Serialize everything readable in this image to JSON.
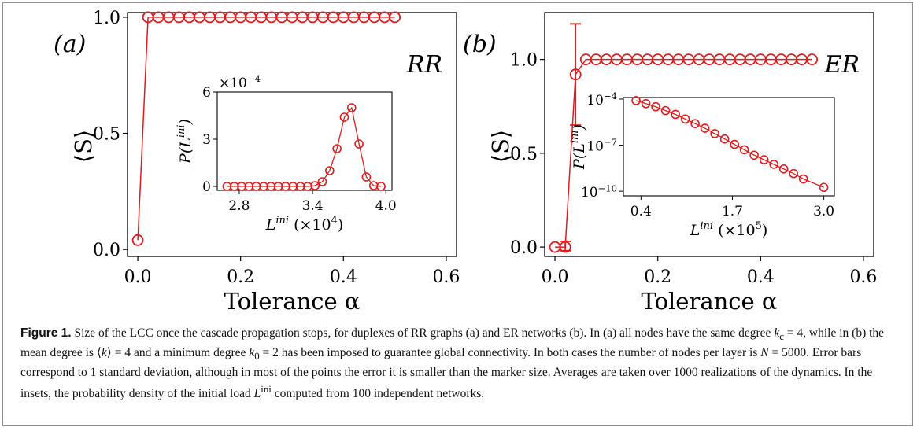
{
  "chart_data": [
    {
      "type": "line",
      "panel_label": "(a)",
      "network_label": "RR",
      "xlabel": "Tolerance α",
      "ylabel": "⟨S⟩",
      "xlim": [
        -0.02,
        0.62
      ],
      "ylim": [
        -0.03,
        1.02
      ],
      "xticks": [
        "0.0",
        "0.2",
        "0.4",
        "0.6"
      ],
      "xtick_values": [
        0.0,
        0.2,
        0.4,
        0.6
      ],
      "yticks": [
        "0.0",
        "0.5",
        "1.0"
      ],
      "ytick_values": [
        0.0,
        0.5,
        1.0
      ],
      "color": "#e31a1c",
      "x": [
        0.0,
        0.02,
        0.04,
        0.06,
        0.08,
        0.1,
        0.12,
        0.14,
        0.16,
        0.18,
        0.2,
        0.22,
        0.24,
        0.26,
        0.28,
        0.3,
        0.32,
        0.34,
        0.36,
        0.38,
        0.4,
        0.42,
        0.44,
        0.46,
        0.48,
        0.5
      ],
      "y": [
        0.04,
        1.0,
        1.0,
        1.0,
        1.0,
        1.0,
        1.0,
        1.0,
        1.0,
        1.0,
        1.0,
        1.0,
        1.0,
        1.0,
        1.0,
        1.0,
        1.0,
        1.0,
        1.0,
        1.0,
        1.0,
        1.0,
        1.0,
        1.0,
        1.0,
        1.0
      ],
      "error_bars": [],
      "inset": {
        "type": "line",
        "xlabel_main": "L",
        "xlabel_sup": "ini",
        "xlabel_unit": "(×10",
        "xlabel_unit_exp": "4",
        "ylabel": "P(L",
        "ylabel_sup": "ini",
        "offset_text": "×10",
        "offset_exp": "−4",
        "xlim": [
          2.62,
          4.05
        ],
        "ylim": [
          -0.25,
          6.0
        ],
        "xticks": [
          "2.8",
          "3.4",
          "4.0"
        ],
        "xtick_values": [
          2.8,
          3.4,
          4.0
        ],
        "yticks": [
          "0",
          "3",
          "6"
        ],
        "ytick_values": [
          0,
          3,
          6
        ],
        "x": [
          2.7,
          2.76,
          2.82,
          2.88,
          2.94,
          3.0,
          3.06,
          3.12,
          3.18,
          3.24,
          3.3,
          3.36,
          3.42,
          3.48,
          3.54,
          3.6,
          3.66,
          3.72,
          3.78,
          3.84,
          3.9,
          3.96
        ],
        "y": [
          0,
          0,
          0,
          0,
          0,
          0,
          0,
          0,
          0,
          0,
          0,
          0,
          0.05,
          0.3,
          1.0,
          2.4,
          4.4,
          5.0,
          2.7,
          0.6,
          0.05,
          0
        ]
      }
    },
    {
      "type": "line",
      "panel_label": "(b)",
      "network_label": "ER",
      "xlabel": "Tolerance α",
      "ylabel": "⟨S⟩",
      "xlim": [
        -0.02,
        0.62
      ],
      "ylim": [
        -0.05,
        1.25
      ],
      "xticks": [
        "0.0",
        "0.2",
        "0.4",
        "0.6"
      ],
      "xtick_values": [
        0.0,
        0.2,
        0.4,
        0.6
      ],
      "yticks": [
        "0.0",
        "0.5",
        "1.0"
      ],
      "ytick_values": [
        0.0,
        0.5,
        1.0
      ],
      "color": "#e31a1c",
      "x": [
        0.0,
        0.02,
        0.04,
        0.06,
        0.08,
        0.1,
        0.12,
        0.14,
        0.16,
        0.18,
        0.2,
        0.22,
        0.24,
        0.26,
        0.28,
        0.3,
        0.32,
        0.34,
        0.36,
        0.38,
        0.4,
        0.42,
        0.44,
        0.46,
        0.48,
        0.5
      ],
      "y": [
        0.0,
        0.0,
        0.92,
        1.0,
        1.0,
        1.0,
        1.0,
        1.0,
        1.0,
        1.0,
        1.0,
        1.0,
        1.0,
        1.0,
        1.0,
        1.0,
        1.0,
        1.0,
        1.0,
        1.0,
        1.0,
        1.0,
        1.0,
        1.0,
        1.0,
        1.0
      ],
      "error_bars": [
        {
          "x": 0.02,
          "low": -0.02,
          "high": 0.03
        },
        {
          "x": 0.04,
          "low": 0.65,
          "high": 1.19
        }
      ],
      "inset": {
        "type": "line",
        "log_y": true,
        "xlabel_main": "L",
        "xlabel_sup": "ini",
        "xlabel_unit": "(×10",
        "xlabel_unit_exp": "5",
        "ylabel": "P(L",
        "ylabel_sup": "ini",
        "xlim": [
          0.15,
          3.15
        ],
        "ylim_log10": [
          -10.3,
          -3.9
        ],
        "xticks": [
          "0.4",
          "1.7",
          "3.0"
        ],
        "xtick_values": [
          0.4,
          1.7,
          3.0
        ],
        "yticks_base": "10",
        "yticks_exp": [
          "−4",
          "−7",
          "−10"
        ],
        "ytick_log10": [
          -4,
          -7,
          -10
        ],
        "x": [
          0.33,
          0.47,
          0.61,
          0.75,
          0.89,
          1.03,
          1.17,
          1.31,
          1.45,
          1.59,
          1.73,
          1.87,
          2.01,
          2.15,
          2.29,
          2.43,
          2.57,
          2.71,
          3.0
        ],
        "log10_y": [
          -4.1,
          -4.3,
          -4.5,
          -4.75,
          -5.0,
          -5.3,
          -5.6,
          -5.9,
          -6.25,
          -6.6,
          -6.95,
          -7.3,
          -7.65,
          -7.95,
          -8.25,
          -8.55,
          -8.85,
          -9.2,
          -9.75
        ]
      }
    }
  ],
  "caption": {
    "label": "Figure 1.",
    "seg1": " Size of the LCC once the cascade propagation stops, for duplexes of RR graphs (a) and ER networks (b). In (a) all nodes have the same degree ",
    "kc_var": "k",
    "kc_sub": "c",
    "seg2": " = 4, while in (b) the mean degree is ⟨",
    "k_var": "k",
    "seg3": "⟩ = 4 and a minimum degree ",
    "k0_var": "k",
    "k0_sub": "0",
    "seg4": " = 2 has been imposed to guarantee global connectivity. In both cases the number of nodes per layer is ",
    "n_var": "N",
    "seg5": " = 5000. Error bars correspond to 1 standard deviation, although in most of the points the error it is smaller than the marker size. Averages are taken over 1000 realizations of the dynamics. In the insets, the probability density of the initial load ",
    "l_var": "L",
    "l_sup": "ini",
    "seg6": " computed from 100 independent networks."
  }
}
